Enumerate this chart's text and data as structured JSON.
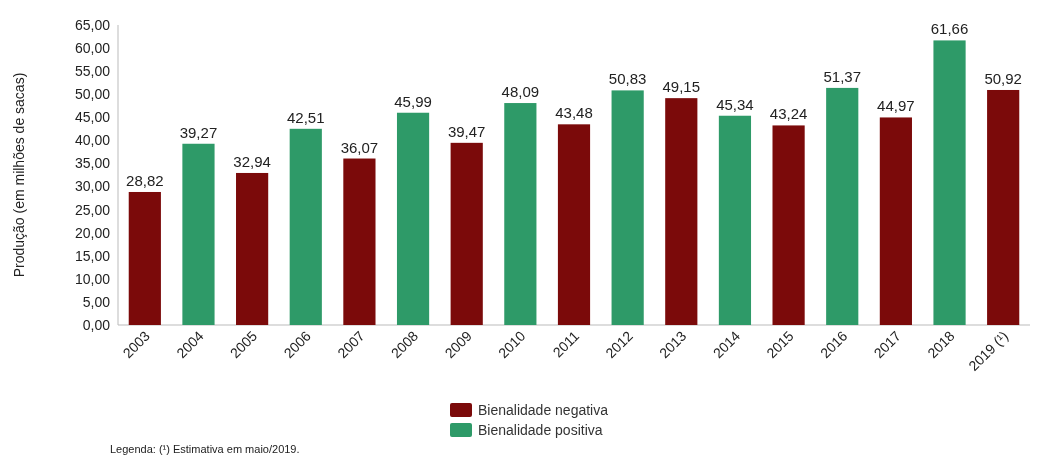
{
  "chart_data": {
    "type": "bar",
    "ylabel": "Produção (em milhões de sacas)",
    "categories": [
      "2003",
      "2004",
      "2005",
      "2006",
      "2007",
      "2008",
      "2009",
      "2010",
      "2011",
      "2012",
      "2013",
      "2014",
      "2015",
      "2016",
      "2017",
      "2018",
      "2019 (¹)"
    ],
    "series": [
      {
        "name": "Bienalidade negativa",
        "color": "#7b0a0a",
        "values": [
          28.82,
          null,
          32.94,
          null,
          36.07,
          null,
          39.47,
          null,
          43.48,
          null,
          49.15,
          null,
          43.24,
          null,
          44.97,
          null,
          50.92
        ],
        "value_labels": [
          "28,82",
          null,
          "32,94",
          null,
          "36,07",
          null,
          "39,47",
          null,
          "43,48",
          null,
          "49,15",
          null,
          "43,24",
          null,
          "44,97",
          null,
          "50,92"
        ]
      },
      {
        "name": "Bienalidade positiva",
        "color": "#2e9a68",
        "values": [
          null,
          39.27,
          null,
          42.51,
          null,
          45.99,
          null,
          48.09,
          null,
          50.83,
          null,
          45.34,
          null,
          51.37,
          null,
          61.66,
          null
        ],
        "value_labels": [
          null,
          "39,27",
          null,
          "42,51",
          null,
          "45,99",
          null,
          "48,09",
          null,
          "50,83",
          null,
          "45,34",
          null,
          "51,37",
          null,
          "61,66",
          null
        ]
      }
    ],
    "ylim": [
      0,
      65
    ],
    "yticks": [
      {
        "value": 0,
        "label": "0,00"
      },
      {
        "value": 5,
        "label": "5,00"
      },
      {
        "value": 10,
        "label": "10,00"
      },
      {
        "value": 15,
        "label": "15,00"
      },
      {
        "value": 20,
        "label": "20,00"
      },
      {
        "value": 25,
        "label": "25,00"
      },
      {
        "value": 30,
        "label": "30,00"
      },
      {
        "value": 35,
        "label": "35,00"
      },
      {
        "value": 40,
        "label": "40,00"
      },
      {
        "value": 45,
        "label": "45,00"
      },
      {
        "value": 50,
        "label": "50,00"
      },
      {
        "value": 55,
        "label": "55,00"
      },
      {
        "value": 60,
        "label": "60,00"
      },
      {
        "value": 65,
        "label": "65,00"
      }
    ],
    "legend": "bottom",
    "annotations": [
      "Legenda: (¹) Estimativa em maio/2019."
    ]
  }
}
